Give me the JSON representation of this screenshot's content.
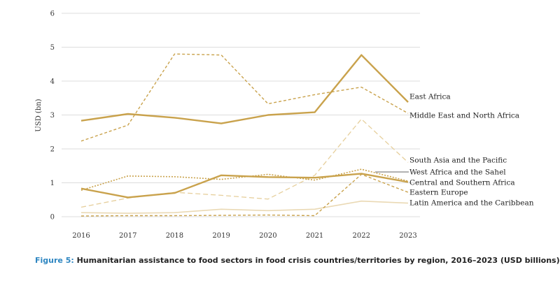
{
  "chart_data": {
    "type": "line",
    "ylabel": "USD (bn)",
    "ylim": [
      0,
      6
    ],
    "yticks": [
      "0",
      "1",
      "2",
      "3",
      "4",
      "5",
      "6"
    ],
    "ytick_values": [
      0,
      1,
      2,
      3,
      4,
      5,
      6
    ],
    "categories": [
      "2016",
      "2017",
      "2018",
      "2019",
      "2020",
      "2021",
      "2022",
      "2023"
    ],
    "colors": {
      "gold": "#c9a24c",
      "gold_light": "#e6cf9c",
      "gold_pale": "#ead9b4",
      "grid": "#dddddd"
    },
    "series": [
      {
        "name": "East Africa",
        "style": "solid-thick",
        "values": [
          2.83,
          3.03,
          2.92,
          2.75,
          3.0,
          3.08,
          4.77,
          3.38
        ]
      },
      {
        "name": "Middle East and North Africa",
        "style": "dashed",
        "values": [
          2.23,
          2.7,
          4.8,
          4.77,
          3.33,
          3.6,
          3.82,
          3.05
        ]
      },
      {
        "name": "South Asia and the Pacific",
        "style": "dashed-light",
        "values": [
          0.28,
          0.55,
          0.72,
          0.63,
          0.52,
          1.22,
          2.88,
          1.6
        ]
      },
      {
        "name": "West Africa and the Sahel",
        "style": "solid-thick",
        "values": [
          0.83,
          0.57,
          0.7,
          1.22,
          1.17,
          1.15,
          1.27,
          1.02
        ]
      },
      {
        "name": "Central and Southern Africa",
        "style": "dotted",
        "values": [
          0.78,
          1.2,
          1.18,
          1.1,
          1.25,
          1.08,
          1.4,
          1.05
        ]
      },
      {
        "name": "Eastern Europe",
        "style": "dashed",
        "values": [
          0.02,
          0.03,
          0.03,
          0.04,
          0.05,
          0.03,
          1.25,
          0.72
        ]
      },
      {
        "name": "Latin America and the Caribbean",
        "style": "solid-light",
        "values": [
          0.12,
          0.1,
          0.12,
          0.22,
          0.18,
          0.22,
          0.46,
          0.4
        ]
      }
    ]
  },
  "caption": {
    "figure": "Figure 5:",
    "text": " Humanitarian assistance to food sectors in food crisis countries/territories by region, 2016–2023 (USD billions).",
    "figure_color": "#2e86c1"
  }
}
